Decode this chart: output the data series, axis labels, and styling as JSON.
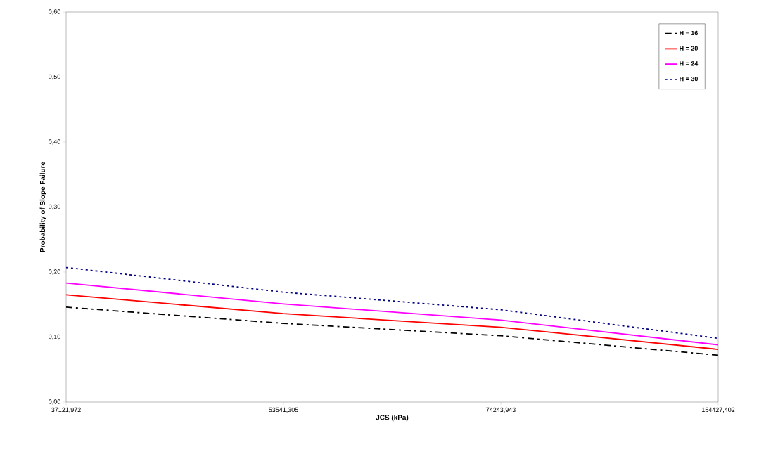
{
  "chart_data": {
    "type": "line",
    "xlabel": "JCS (kPa)",
    "ylabel": "Probability of Slope Failure",
    "categories": [
      "37121,972",
      "53541,305",
      "74243,943",
      "154427,402"
    ],
    "series": [
      {
        "name": "H = 16",
        "color": "#000000",
        "line_style": "dashdot",
        "values": [
          0.146,
          0.121,
          0.102,
          0.072
        ]
      },
      {
        "name": "H = 20",
        "color": "#ff0000",
        "line_style": "solid",
        "values": [
          0.165,
          0.136,
          0.115,
          0.081
        ]
      },
      {
        "name": "H = 24",
        "color": "#ff00ff",
        "line_style": "solid",
        "values": [
          0.183,
          0.151,
          0.126,
          0.088
        ]
      },
      {
        "name": "H = 30",
        "color": "#000080",
        "line_style": "dotted",
        "values": [
          0.207,
          0.169,
          0.142,
          0.098
        ]
      }
    ],
    "ylim": [
      0,
      0.6
    ],
    "yticks": [
      {
        "value": 0,
        "label": "0,00"
      },
      {
        "value": 0.1,
        "label": "0,10"
      },
      {
        "value": 0.2,
        "label": "0,20"
      },
      {
        "value": 0.3,
        "label": "0,30"
      },
      {
        "value": 0.4,
        "label": "0,40"
      },
      {
        "value": 0.5,
        "label": "0,50"
      },
      {
        "value": 0.6,
        "label": "0,60"
      }
    ],
    "legend": "top right"
  }
}
